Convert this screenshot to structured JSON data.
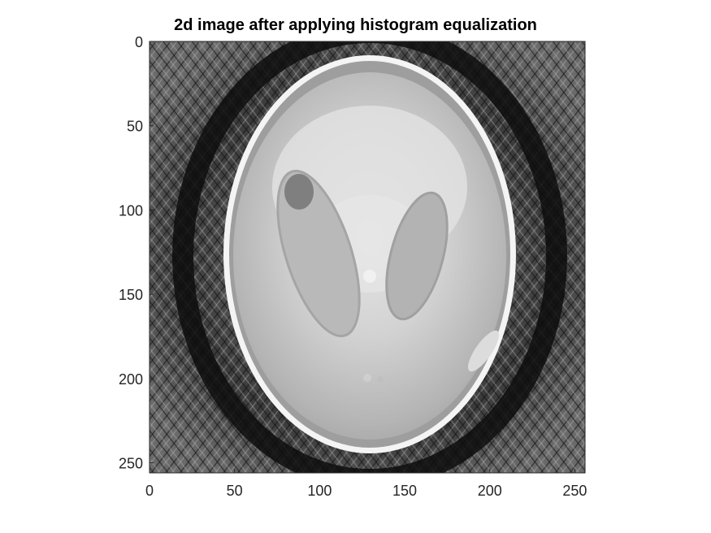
{
  "chart_data": {
    "type": "heatmap",
    "title": "2d image after applying histogram equalization",
    "colormap": "gray",
    "xlim": [
      0,
      256
    ],
    "ylim": [
      256,
      0
    ],
    "xticks": [
      0,
      50,
      100,
      150,
      200,
      250
    ],
    "yticks": [
      0,
      50,
      100,
      150,
      200,
      250
    ],
    "image": "Shepp-Logan phantom reconstruction (256x256), histogram equalized"
  }
}
